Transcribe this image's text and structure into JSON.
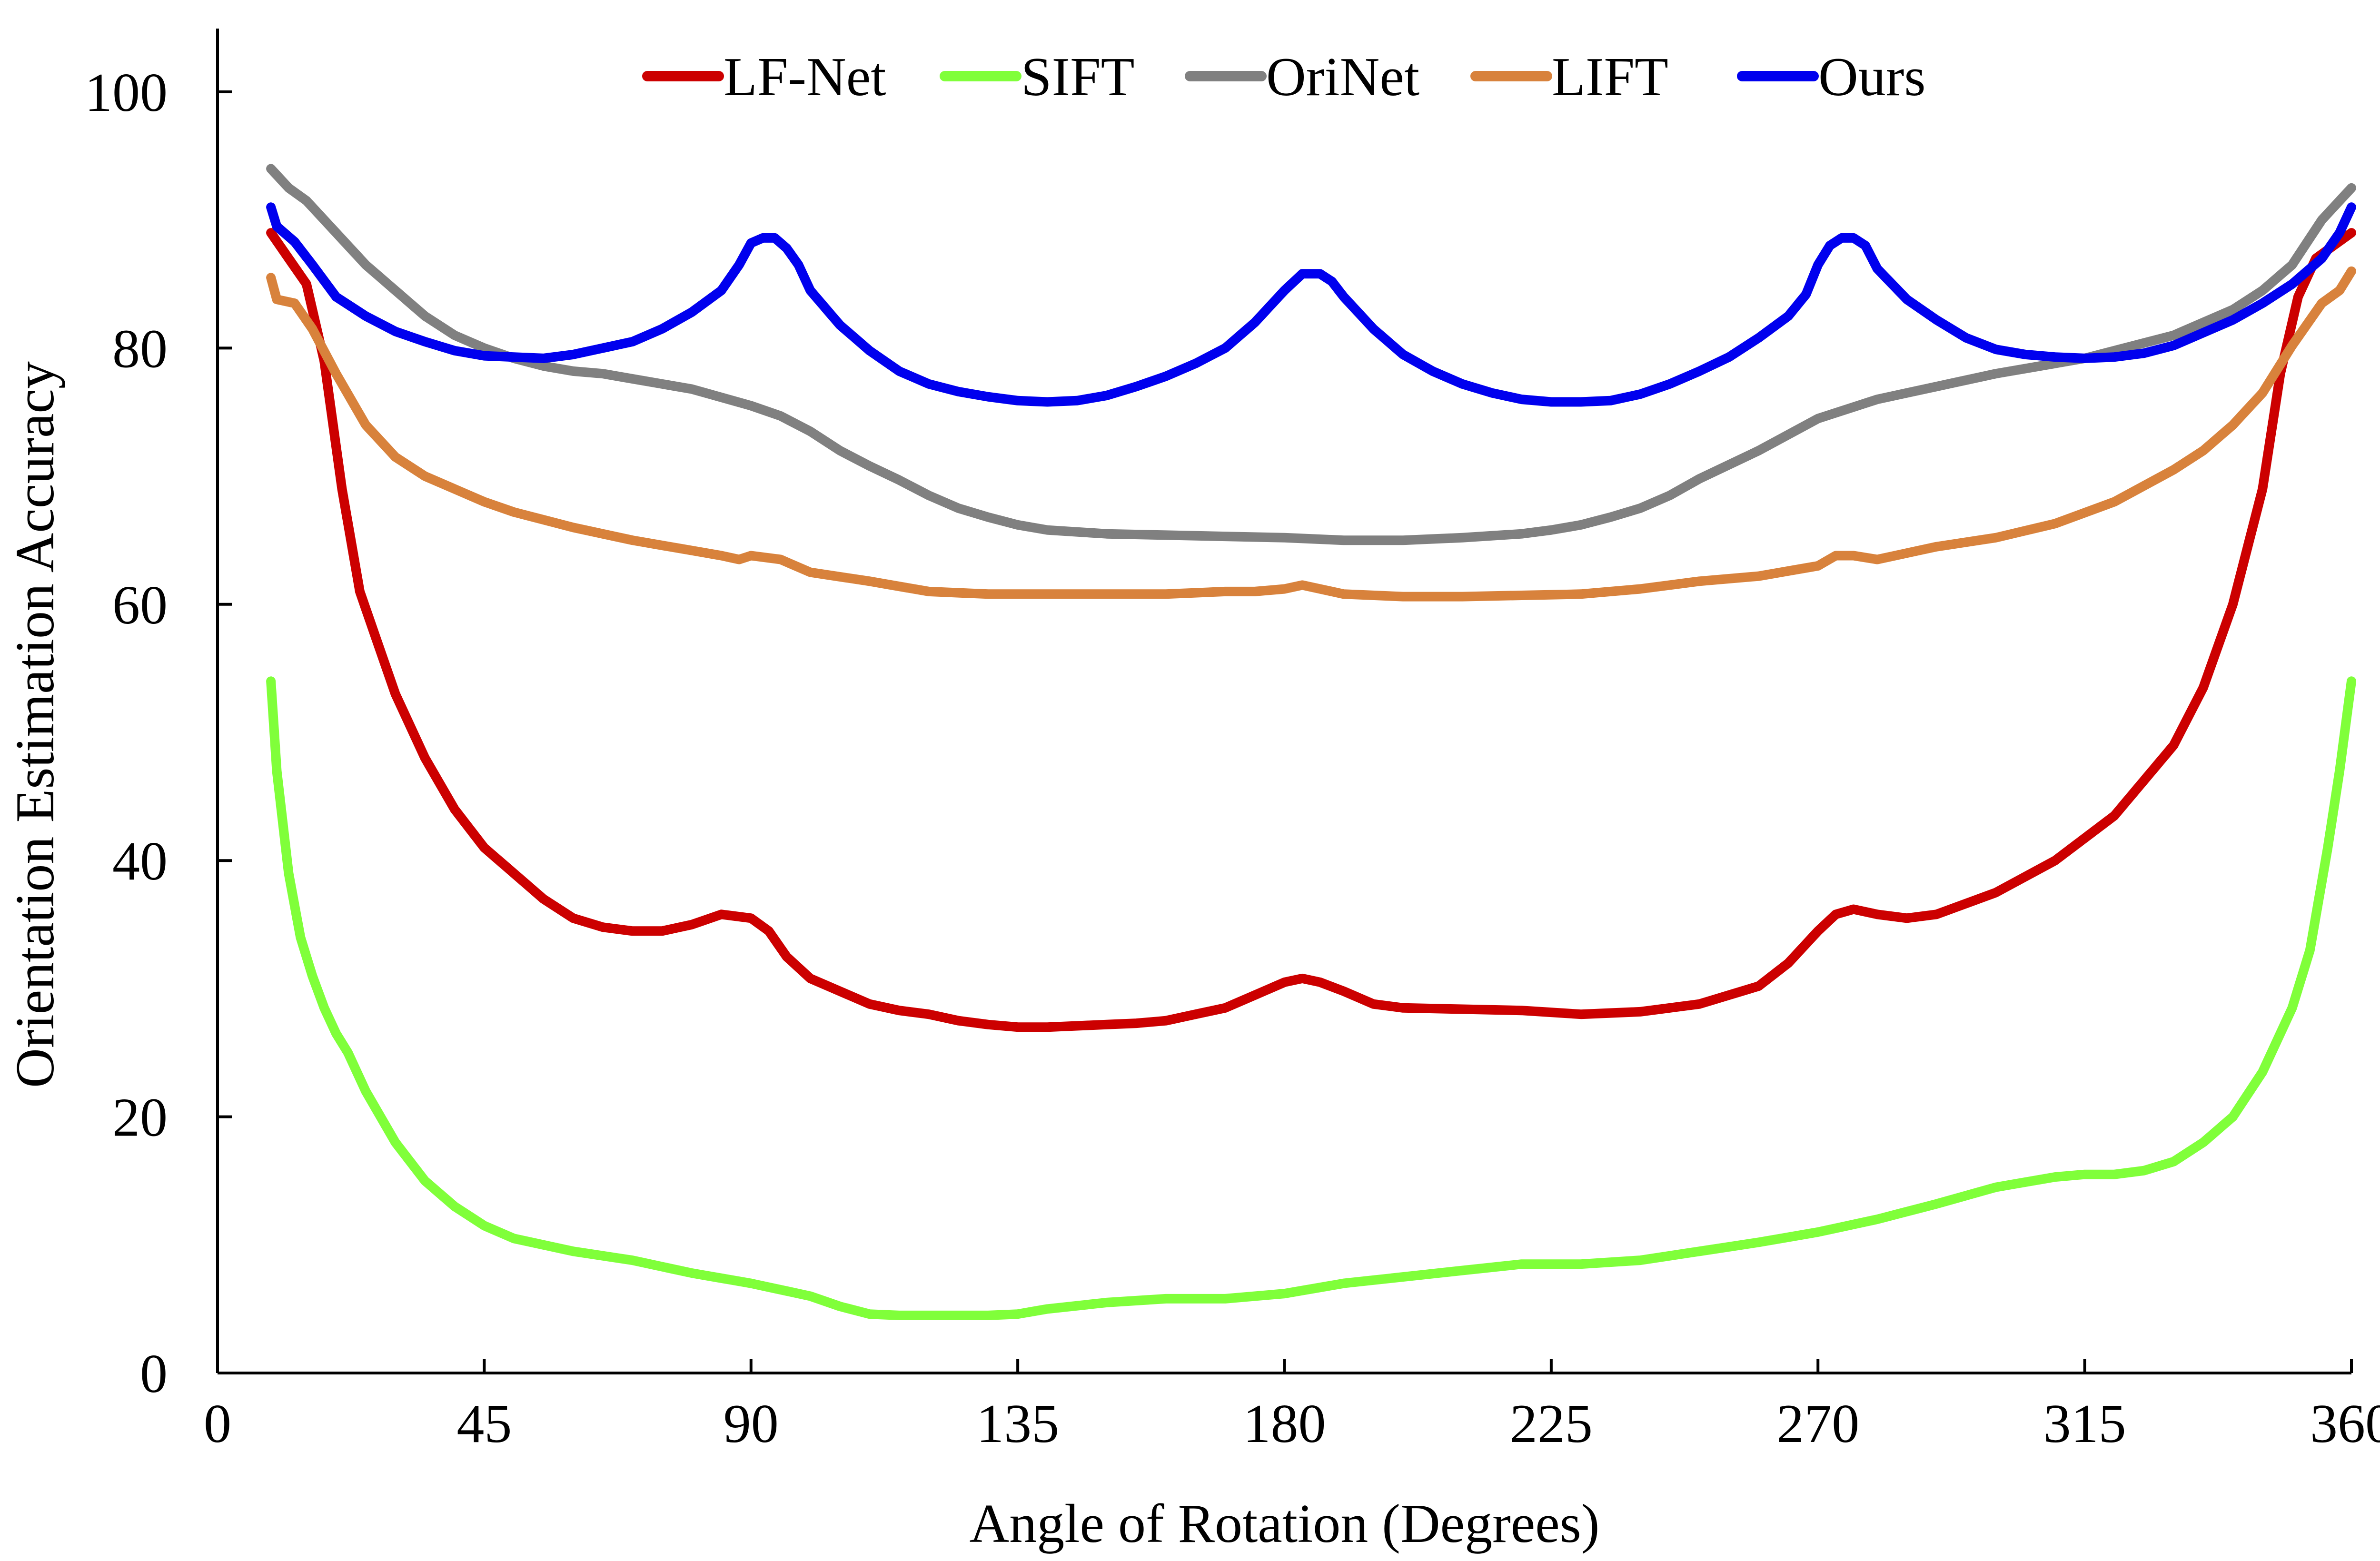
{
  "chart_data": {
    "type": "line",
    "title": "",
    "xlabel": "Angle of Rotation (Degrees)",
    "ylabel": "Orientation Estimation Accuracy",
    "xlim": [
      0,
      360
    ],
    "ylim": [
      0,
      105
    ],
    "xticks": [
      0,
      45,
      90,
      135,
      180,
      225,
      270,
      315,
      360
    ],
    "yticks": [
      0,
      20,
      40,
      60,
      80,
      100
    ],
    "grid": false,
    "legend_position": "top",
    "series": [
      {
        "name": "LF-Net",
        "color": "#cc0000",
        "x": [
          9,
          12,
          15,
          18,
          21,
          24,
          27,
          30,
          35,
          40,
          45,
          50,
          55,
          60,
          65,
          70,
          75,
          80,
          85,
          90,
          93,
          96,
          100,
          105,
          110,
          115,
          120,
          125,
          130,
          135,
          140,
          145,
          150,
          155,
          160,
          165,
          170,
          175,
          180,
          183,
          186,
          190,
          195,
          200,
          210,
          220,
          230,
          240,
          250,
          260,
          265,
          270,
          273,
          276,
          280,
          285,
          290,
          300,
          310,
          320,
          330,
          335,
          340,
          345,
          348,
          351,
          354,
          357,
          360
        ],
        "y": [
          89,
          87,
          85,
          79,
          69,
          61,
          57,
          53,
          48,
          44,
          41,
          39,
          37,
          35.5,
          34.8,
          34.5,
          34.5,
          35,
          35.8,
          35.5,
          34.5,
          32.5,
          30.8,
          29.8,
          28.8,
          28.3,
          28,
          27.5,
          27.2,
          27,
          27,
          27.1,
          27.2,
          27.3,
          27.5,
          28,
          28.5,
          29.5,
          30.5,
          30.8,
          30.5,
          29.8,
          28.8,
          28.5,
          28.4,
          28.3,
          28,
          28.2,
          28.8,
          30.2,
          32,
          34.5,
          35.8,
          36.2,
          35.8,
          35.5,
          35.8,
          37.5,
          40,
          43.5,
          49,
          53.5,
          60,
          69,
          78,
          84,
          87,
          88,
          89
        ]
      },
      {
        "name": "SIFT",
        "color": "#80ff3a",
        "x": [
          9,
          10,
          12,
          14,
          16,
          18,
          20,
          22,
          25,
          30,
          35,
          40,
          45,
          50,
          55,
          60,
          70,
          80,
          90,
          100,
          105,
          110,
          115,
          120,
          125,
          130,
          135,
          140,
          150,
          160,
          170,
          180,
          190,
          200,
          210,
          220,
          230,
          240,
          250,
          260,
          270,
          280,
          290,
          300,
          310,
          315,
          320,
          325,
          330,
          335,
          340,
          345,
          350,
          353,
          356,
          358,
          360
        ],
        "y": [
          54,
          47,
          39,
          34,
          31,
          28.5,
          26.5,
          25,
          22,
          18,
          15,
          13,
          11.5,
          10.5,
          10,
          9.5,
          8.8,
          7.8,
          7,
          6,
          5.2,
          4.6,
          4.5,
          4.5,
          4.5,
          4.5,
          4.6,
          5,
          5.5,
          5.8,
          5.8,
          6.2,
          7,
          7.5,
          8,
          8.5,
          8.5,
          8.8,
          9.5,
          10.2,
          11,
          12,
          13.2,
          14.5,
          15.3,
          15.5,
          15.5,
          15.8,
          16.5,
          18,
          20,
          23.5,
          28.5,
          33,
          41,
          47,
          54
        ]
      },
      {
        "name": "OriNet",
        "color": "#808080",
        "x": [
          9,
          12,
          15,
          20,
          25,
          30,
          35,
          40,
          45,
          50,
          55,
          60,
          65,
          70,
          80,
          90,
          95,
          100,
          105,
          110,
          115,
          120,
          125,
          130,
          135,
          140,
          150,
          160,
          170,
          180,
          190,
          200,
          210,
          220,
          225,
          230,
          235,
          240,
          245,
          250,
          260,
          270,
          280,
          290,
          300,
          310,
          315,
          320,
          330,
          340,
          345,
          350,
          355,
          360
        ],
        "y": [
          94,
          92.5,
          91.5,
          89,
          86.5,
          84.5,
          82.5,
          81,
          80,
          79.2,
          78.6,
          78.2,
          78,
          77.6,
          76.8,
          75.5,
          74.7,
          73.5,
          72,
          70.8,
          69.7,
          68.5,
          67.5,
          66.8,
          66.2,
          65.8,
          65.5,
          65.4,
          65.3,
          65.2,
          65,
          65,
          65.2,
          65.5,
          65.8,
          66.2,
          66.8,
          67.5,
          68.5,
          69.8,
          72,
          74.5,
          76,
          77,
          78,
          78.8,
          79.2,
          79.8,
          81,
          83,
          84.5,
          86.5,
          90,
          92.5
        ]
      },
      {
        "name": "LIFT",
        "color": "#d8823c",
        "x": [
          9,
          10,
          13,
          16,
          20,
          25,
          30,
          35,
          40,
          45,
          50,
          60,
          70,
          80,
          85,
          88,
          90,
          95,
          100,
          110,
          120,
          130,
          140,
          150,
          160,
          170,
          175,
          180,
          183,
          186,
          190,
          200,
          210,
          220,
          230,
          240,
          250,
          260,
          270,
          273,
          276,
          280,
          290,
          300,
          310,
          320,
          330,
          335,
          340,
          345,
          350,
          355,
          358,
          360
        ],
        "y": [
          85.5,
          83.8,
          83.5,
          81.5,
          78,
          74,
          71.5,
          70,
          69,
          68,
          67.2,
          66,
          65,
          64.2,
          63.8,
          63.5,
          63.8,
          63.5,
          62.5,
          61.8,
          61,
          60.8,
          60.8,
          60.8,
          60.8,
          61,
          61,
          61.2,
          61.5,
          61.2,
          60.8,
          60.6,
          60.6,
          60.7,
          60.8,
          61.2,
          61.8,
          62.2,
          63,
          63.8,
          63.8,
          63.5,
          64.5,
          65.2,
          66.3,
          68,
          70.5,
          72,
          74,
          76.5,
          80.2,
          83.5,
          84.5,
          86
        ]
      },
      {
        "name": "Ours",
        "color": "#0000ee",
        "x": [
          9,
          10,
          13,
          16,
          20,
          25,
          30,
          35,
          40,
          45,
          50,
          55,
          60,
          65,
          70,
          75,
          80,
          85,
          88,
          90,
          92,
          94,
          96,
          98,
          100,
          105,
          110,
          115,
          120,
          125,
          130,
          135,
          140,
          145,
          150,
          155,
          160,
          165,
          170,
          175,
          180,
          183,
          186,
          188,
          190,
          195,
          200,
          205,
          210,
          215,
          220,
          225,
          230,
          235,
          240,
          245,
          250,
          255,
          260,
          265,
          268,
          270,
          272,
          274,
          276,
          278,
          280,
          285,
          290,
          295,
          300,
          305,
          310,
          315,
          320,
          325,
          330,
          335,
          340,
          345,
          350,
          355,
          358,
          360
        ],
        "y": [
          91,
          89.5,
          88.3,
          86.5,
          84,
          82.5,
          81.3,
          80.5,
          79.8,
          79.4,
          79.3,
          79.2,
          79.5,
          80,
          80.5,
          81.5,
          82.8,
          84.5,
          86.5,
          88.2,
          88.6,
          88.6,
          87.8,
          86.5,
          84.5,
          81.8,
          79.8,
          78.2,
          77.2,
          76.6,
          76.2,
          75.9,
          75.8,
          75.9,
          76.3,
          77,
          77.8,
          78.8,
          80,
          82,
          84.5,
          85.8,
          85.8,
          85.2,
          84,
          81.5,
          79.5,
          78.2,
          77.2,
          76.5,
          76,
          75.8,
          75.8,
          75.9,
          76.4,
          77.2,
          78.2,
          79.3,
          80.8,
          82.5,
          84.2,
          86.5,
          88,
          88.6,
          88.6,
          88,
          86.2,
          83.8,
          82.2,
          80.8,
          79.9,
          79.5,
          79.3,
          79.2,
          79.3,
          79.6,
          80.2,
          81.2,
          82.2,
          83.5,
          85,
          87,
          89,
          91
        ]
      }
    ]
  }
}
